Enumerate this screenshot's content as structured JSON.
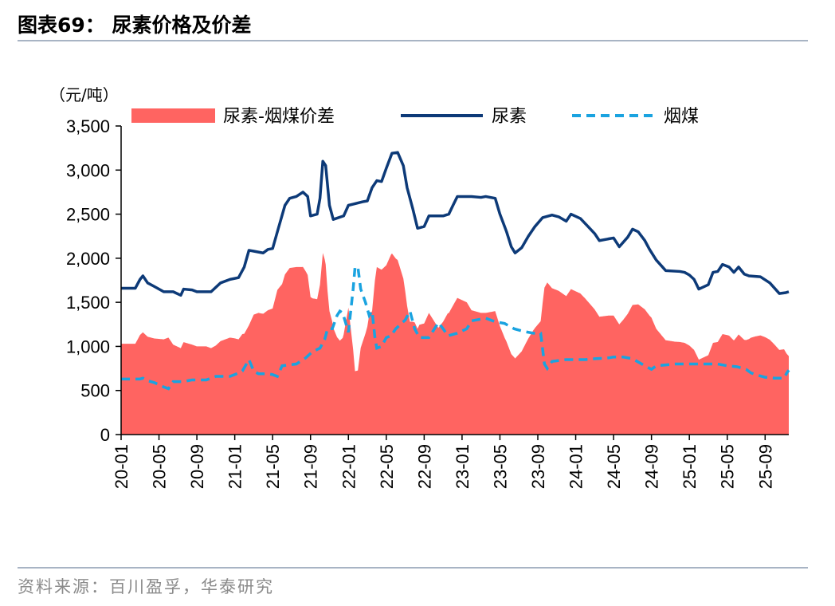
{
  "title": "图表69：  尿素价格及价差",
  "source": "资料来源：百川盈孚，华泰研究",
  "colors": {
    "spread": "#ff6461",
    "urea": "#0d3a78",
    "coal": "#1aa3e0",
    "rule": "#a8b4c4"
  },
  "chart_data": {
    "type": "area+line",
    "unit_label": "（元/吨）",
    "ylim": [
      0,
      3500
    ],
    "yticks": [
      0,
      500,
      1000,
      1500,
      2000,
      2500,
      3000,
      3500
    ],
    "ytick_labels": [
      "0",
      "500",
      "1,000",
      "1,500",
      "2,000",
      "2,500",
      "3,000",
      "3,500"
    ],
    "xlim": [
      0,
      70.5
    ],
    "xtick_labels": [
      "20-01",
      "20-05",
      "20-09",
      "21-01",
      "21-05",
      "21-09",
      "22-01",
      "22-05",
      "22-09",
      "23-01",
      "23-05",
      "23-09",
      "24-01",
      "24-05",
      "24-09",
      "25-01",
      "25-05",
      "25-09"
    ],
    "grid": false,
    "legend_position": "top",
    "legend": [
      "尿素-烟煤价差",
      "尿素",
      "烟煤"
    ],
    "series": [
      {
        "name": "尿素",
        "style": "line-solid",
        "points": [
          [
            0,
            1660
          ],
          [
            1.5,
            1660
          ],
          [
            2,
            1760
          ],
          [
            2.3,
            1800
          ],
          [
            2.8,
            1720
          ],
          [
            3.5,
            1680
          ],
          [
            4.5,
            1620
          ],
          [
            5.5,
            1620
          ],
          [
            6.3,
            1580
          ],
          [
            6.6,
            1650
          ],
          [
            7.5,
            1640
          ],
          [
            8,
            1620
          ],
          [
            9.5,
            1620
          ],
          [
            10.5,
            1720
          ],
          [
            11.5,
            1760
          ],
          [
            12.4,
            1780
          ],
          [
            13,
            1900
          ],
          [
            13.5,
            2090
          ],
          [
            14,
            2080
          ],
          [
            15,
            2060
          ],
          [
            15.5,
            2100
          ],
          [
            16,
            2110
          ],
          [
            16.5,
            2300
          ],
          [
            17.3,
            2600
          ],
          [
            17.8,
            2680
          ],
          [
            18.5,
            2700
          ],
          [
            19.2,
            2750
          ],
          [
            19.7,
            2700
          ],
          [
            20,
            2480
          ],
          [
            20.7,
            2500
          ],
          [
            21,
            2680
          ],
          [
            21.3,
            3100
          ],
          [
            21.6,
            3050
          ],
          [
            22,
            2600
          ],
          [
            22.4,
            2440
          ],
          [
            23.5,
            2480
          ],
          [
            24,
            2600
          ],
          [
            25.5,
            2640
          ],
          [
            26,
            2650
          ],
          [
            26.5,
            2800
          ],
          [
            27,
            2880
          ],
          [
            27.5,
            2870
          ],
          [
            28,
            3020
          ],
          [
            28.6,
            3190
          ],
          [
            29.2,
            3200
          ],
          [
            29.8,
            3050
          ],
          [
            30.2,
            2800
          ],
          [
            30.8,
            2560
          ],
          [
            31.3,
            2340
          ],
          [
            32,
            2360
          ],
          [
            32.5,
            2480
          ],
          [
            34,
            2480
          ],
          [
            34.6,
            2500
          ],
          [
            35,
            2590
          ],
          [
            35.5,
            2700
          ],
          [
            37,
            2700
          ],
          [
            38,
            2690
          ],
          [
            38.5,
            2700
          ],
          [
            39.5,
            2680
          ],
          [
            40,
            2500
          ],
          [
            40.7,
            2300
          ],
          [
            41.2,
            2130
          ],
          [
            41.6,
            2060
          ],
          [
            42.3,
            2120
          ],
          [
            43,
            2250
          ],
          [
            43.7,
            2360
          ],
          [
            44.5,
            2460
          ],
          [
            45.5,
            2490
          ],
          [
            46.2,
            2470
          ],
          [
            47,
            2420
          ],
          [
            47.5,
            2500
          ],
          [
            48.5,
            2450
          ],
          [
            49.3,
            2360
          ],
          [
            50,
            2280
          ],
          [
            50.5,
            2200
          ],
          [
            51.5,
            2220
          ],
          [
            52,
            2230
          ],
          [
            52.6,
            2130
          ],
          [
            53.5,
            2240
          ],
          [
            54,
            2330
          ],
          [
            54.6,
            2300
          ],
          [
            55.3,
            2200
          ],
          [
            55.8,
            2100
          ],
          [
            56.5,
            1980
          ],
          [
            57.5,
            1860
          ],
          [
            59,
            1850
          ],
          [
            59.5,
            1840
          ],
          [
            60,
            1810
          ],
          [
            60.5,
            1760
          ],
          [
            61,
            1650
          ],
          [
            62,
            1700
          ],
          [
            62.5,
            1840
          ],
          [
            63,
            1850
          ],
          [
            63.5,
            1930
          ],
          [
            64.2,
            1900
          ],
          [
            64.7,
            1840
          ],
          [
            65.2,
            1900
          ],
          [
            65.8,
            1820
          ],
          [
            66.3,
            1800
          ],
          [
            67.5,
            1790
          ],
          [
            68.5,
            1720
          ],
          [
            69.5,
            1600
          ],
          [
            70.2,
            1610
          ],
          [
            70.5,
            1620
          ]
        ]
      },
      {
        "name": "烟煤",
        "style": "line-dashed",
        "points": [
          [
            0,
            630
          ],
          [
            2,
            630
          ],
          [
            2.3,
            640
          ],
          [
            2.8,
            610
          ],
          [
            3.5,
            590
          ],
          [
            4.5,
            540
          ],
          [
            5,
            520
          ],
          [
            5.5,
            600
          ],
          [
            6.5,
            600
          ],
          [
            7.5,
            620
          ],
          [
            8,
            620
          ],
          [
            9,
            620
          ],
          [
            10,
            660
          ],
          [
            11.5,
            660
          ],
          [
            12,
            680
          ],
          [
            12.8,
            720
          ],
          [
            13.5,
            850
          ],
          [
            14,
            720
          ],
          [
            14.5,
            690
          ],
          [
            15.5,
            690
          ],
          [
            16,
            680
          ],
          [
            16.5,
            660
          ],
          [
            17,
            780
          ],
          [
            18.5,
            800
          ],
          [
            19.5,
            870
          ],
          [
            20.2,
            940
          ],
          [
            21,
            980
          ],
          [
            21.5,
            1080
          ],
          [
            21.8,
            1200
          ],
          [
            22.3,
            1200
          ],
          [
            22.8,
            1350
          ],
          [
            23.1,
            1400
          ],
          [
            23.4,
            1380
          ],
          [
            24,
            1160
          ],
          [
            24.5,
            1650
          ],
          [
            24.7,
            1900
          ],
          [
            25,
            1900
          ],
          [
            25.3,
            1650
          ],
          [
            25.8,
            1500
          ],
          [
            26.2,
            1350
          ],
          [
            26.5,
            1400
          ],
          [
            26.8,
            1100
          ],
          [
            27,
            980
          ],
          [
            27.5,
            1000
          ],
          [
            28,
            1100
          ],
          [
            28.5,
            1120
          ],
          [
            29,
            1200
          ],
          [
            30,
            1300
          ],
          [
            30.5,
            1400
          ],
          [
            31,
            1200
          ],
          [
            31.5,
            1100
          ],
          [
            32.5,
            1100
          ],
          [
            33.5,
            1270
          ],
          [
            34,
            1200
          ],
          [
            34.5,
            1120
          ],
          [
            35.5,
            1150
          ],
          [
            36.5,
            1200
          ],
          [
            37,
            1290
          ],
          [
            38.5,
            1320
          ],
          [
            39.5,
            1280
          ],
          [
            40.5,
            1260
          ],
          [
            41.5,
            1200
          ],
          [
            42.5,
            1170
          ],
          [
            43.5,
            1150
          ],
          [
            44.3,
            1150
          ],
          [
            44.7,
            800
          ],
          [
            45,
            750
          ],
          [
            45.5,
            830
          ],
          [
            47,
            850
          ],
          [
            49,
            850
          ],
          [
            50,
            860
          ],
          [
            51.5,
            870
          ],
          [
            52,
            880
          ],
          [
            53,
            880
          ],
          [
            54,
            860
          ],
          [
            55.3,
            780
          ],
          [
            56,
            740
          ],
          [
            56.5,
            780
          ],
          [
            58.5,
            800
          ],
          [
            60,
            800
          ],
          [
            63,
            800
          ],
          [
            64,
            780
          ],
          [
            65,
            770
          ],
          [
            66,
            740
          ],
          [
            66.5,
            700
          ],
          [
            67,
            680
          ],
          [
            68,
            650
          ],
          [
            69,
            640
          ],
          [
            70,
            640
          ],
          [
            70.3,
            700
          ],
          [
            70.5,
            730
          ]
        ]
      }
    ],
    "spread_rule": "尿素-烟煤价差 = 尿素 - 烟煤"
  }
}
